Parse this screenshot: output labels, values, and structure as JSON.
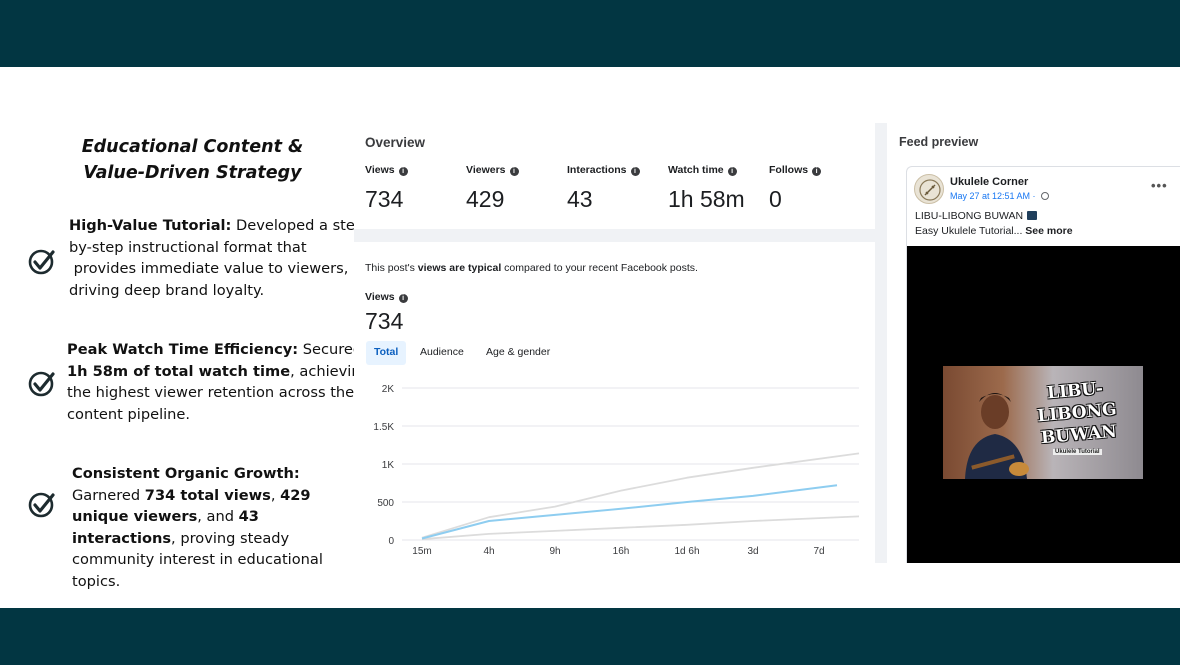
{
  "slide": {
    "title_line1": "Educational Content &",
    "title_line2": "Value-Driven Strategy",
    "bullets": [
      {
        "lines": [
          [
            {
              "t": "High-Value Tutorial:",
              "b": true
            },
            {
              "t": " Developed a step-",
              "b": false
            }
          ],
          [
            {
              "t": "by-step instructional format that",
              "b": false
            }
          ],
          [
            {
              "t": " provides immediate value to viewers,",
              "b": false
            }
          ],
          [
            {
              "t": "driving deep brand loyalty.",
              "b": false
            }
          ]
        ]
      },
      {
        "lines": [
          [
            {
              "t": "Peak Watch Time Efficiency:",
              "b": true
            },
            {
              "t": " Secured",
              "b": false
            }
          ],
          [
            {
              "t": "1h 58m of total watch time",
              "b": true
            },
            {
              "t": ", achieving",
              "b": false
            }
          ],
          [
            {
              "t": "the highest viewer retention across the",
              "b": false
            }
          ],
          [
            {
              "t": "content pipeline.",
              "b": false
            }
          ]
        ]
      },
      {
        "lines": [
          [
            {
              "t": "Consistent Organic Growth:",
              "b": true
            }
          ],
          [
            {
              "t": "Garnered ",
              "b": false
            },
            {
              "t": "734 total views",
              "b": true
            },
            {
              "t": ", ",
              "b": false
            },
            {
              "t": "429",
              "b": true
            }
          ],
          [
            {
              "t": "unique viewers",
              "b": true
            },
            {
              "t": ", and ",
              "b": false
            },
            {
              "t": "43",
              "b": true
            }
          ],
          [
            {
              "t": "interactions",
              "b": true
            },
            {
              "t": ", proving steady",
              "b": false
            }
          ],
          [
            {
              "t": "community interest in educational",
              "b": false
            }
          ],
          [
            {
              "t": "topics.",
              "b": false
            }
          ]
        ]
      }
    ]
  },
  "overview": {
    "title": "Overview",
    "metrics": [
      {
        "label": "Views",
        "value": "734"
      },
      {
        "label": "Viewers",
        "value": "429"
      },
      {
        "label": "Interactions",
        "value": "43"
      },
      {
        "label": "Watch time",
        "value": "1h 58m"
      },
      {
        "label": "Follows",
        "value": "0"
      }
    ]
  },
  "views_card": {
    "typical_pre": "This post's ",
    "typical_bold": "views are typical",
    "typical_post": " compared to your recent Facebook posts.",
    "label": "Views",
    "value": "734",
    "tabs": [
      "Total",
      "Audience",
      "Age & gender"
    ]
  },
  "chart_data": {
    "type": "line",
    "x": [
      "15m",
      "4h",
      "9h",
      "16h",
      "1d 6h",
      "3d",
      "7d"
    ],
    "y_ticks": [
      "2K",
      "1.5K",
      "1K",
      "500",
      "0"
    ],
    "ylim": [
      0,
      2000
    ],
    "grid": true,
    "series": [
      {
        "color": "#8ecdf0",
        "values": [
          20,
          250,
          330,
          410,
          500,
          580,
          720
        ]
      },
      {
        "color": "#dcdcdc",
        "values": [
          30,
          300,
          440,
          650,
          820,
          950,
          1140
        ]
      },
      {
        "color": "#dcdcdc",
        "values": [
          10,
          80,
          120,
          160,
          200,
          250,
          310
        ]
      }
    ]
  },
  "feed_preview": {
    "title": "Feed preview",
    "page_name": "Ukulele Corner",
    "date": "May 27 at 12:51 AM · ",
    "line1": "LIBU-LIBONG BUWAN",
    "line2": "Easy Ukulele Tutorial... ",
    "see_more": "See more",
    "more_glyph": "•••",
    "thumb_title_1": "LIBU-LIBONG",
    "thumb_title_2": "BUWAN",
    "thumb_sub": "Ukulele Tutorial"
  },
  "colors": {
    "band": "#023642",
    "accent": "#1877f2"
  }
}
